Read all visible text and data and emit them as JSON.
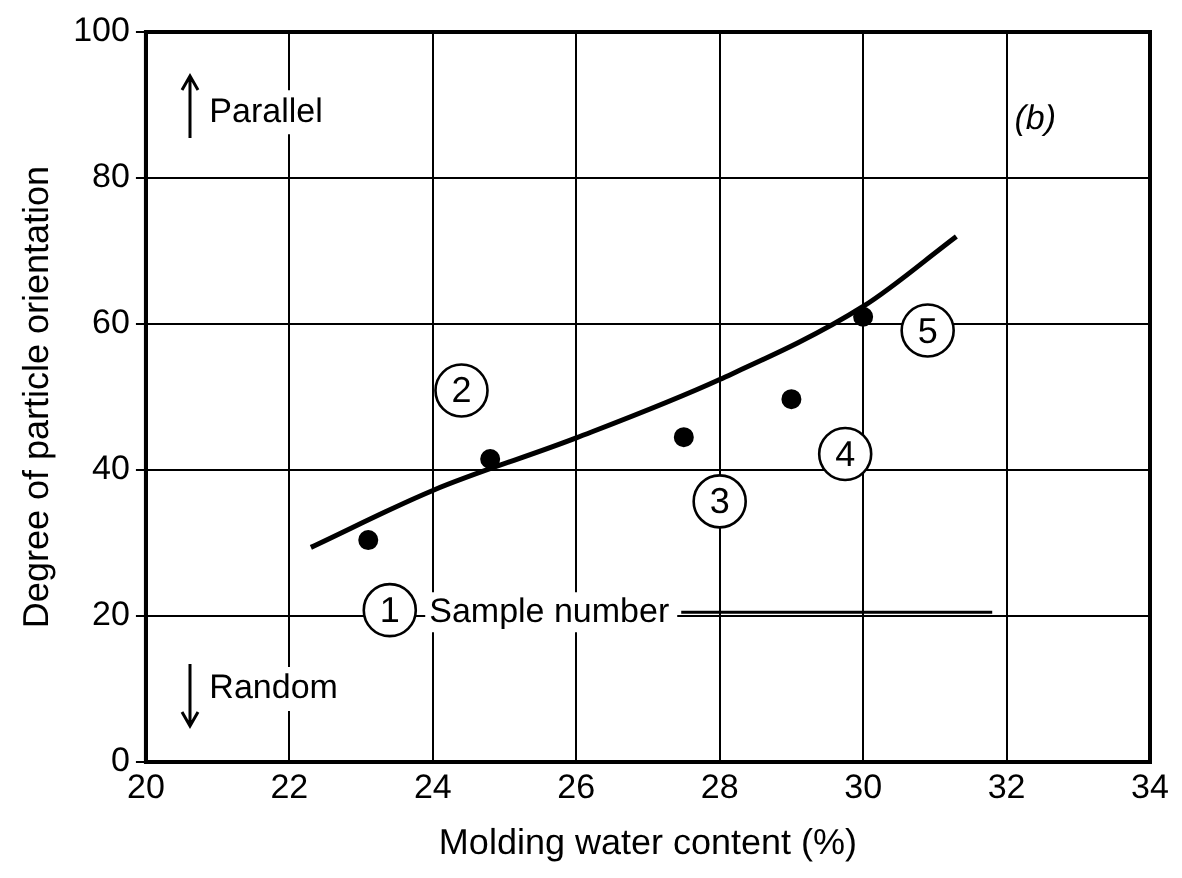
{
  "chart_data": {
    "type": "scatter",
    "xlabel": "Molding water content (%)",
    "ylabel": "Degree of particle orientation",
    "series": [
      {
        "color": "#000000",
        "x": [
          23.1,
          24.8,
          27.5,
          29.0,
          30.0
        ],
        "values": [
          30.4,
          41.5,
          44.5,
          49.7,
          61
        ]
      },
      {
        "type": "line",
        "color": "#000000",
        "marker": "none",
        "x": [
          22.3,
          24,
          26,
          28,
          30,
          31.3
        ],
        "values": [
          29.4,
          37.2,
          44.4,
          52.4,
          62.4,
          72
        ]
      }
    ],
    "xlim": [
      20,
      34
    ],
    "xticks": [
      20,
      22,
      24,
      26,
      28,
      30,
      32,
      34
    ],
    "ylim": [
      0,
      100
    ],
    "yticks": [
      0,
      20,
      40,
      60,
      80,
      100
    ],
    "grid": true,
    "legend": false,
    "marker": "circle",
    "annotations": [
      "Parallel",
      "Random",
      "Sample number",
      "(b)",
      {
        "text": "1",
        "x": 23.4,
        "y": 20.8
      },
      {
        "text": "2",
        "x": 24.4,
        "y": 50.9
      },
      {
        "text": "3",
        "x": 28.0,
        "y": 35.7
      },
      {
        "text": "4",
        "x": 29.75,
        "y": 42.2
      },
      {
        "text": "5",
        "x": 30.9,
        "y": 59.1
      }
    ]
  }
}
